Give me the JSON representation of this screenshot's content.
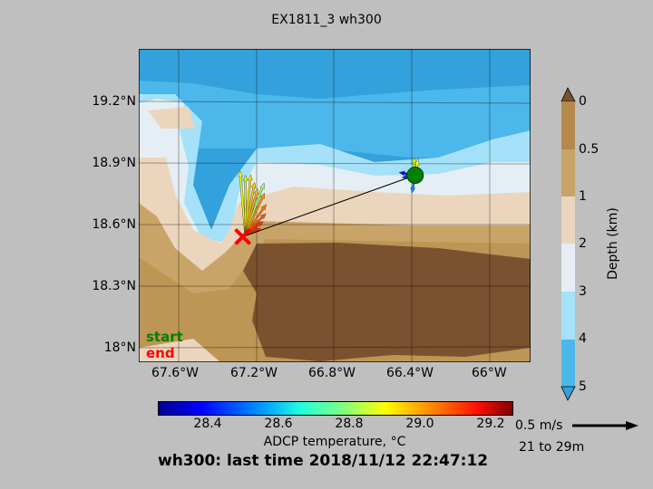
{
  "title": "EX1811_3 wh300",
  "map": {
    "lat_ticks": [
      "19.2°N",
      "18.9°N",
      "18.6°N",
      "18.3°N",
      "18°N"
    ],
    "lon_ticks": [
      "67.6°W",
      "67.2°W",
      "66.8°W",
      "66.4°W",
      "66°W"
    ],
    "lon_range": [
      -67.82,
      -65.8
    ],
    "lat_range": [
      17.93,
      19.46
    ],
    "start_label": "start",
    "end_label": "end",
    "start_point": {
      "lon": -66.395,
      "lat": 18.843,
      "color": "#008000"
    },
    "end_point": {
      "lon": -67.284,
      "lat": 18.543,
      "color": "#ff0000"
    }
  },
  "depth_colorbar": {
    "label": "Depth (km)",
    "ticks": [
      "0",
      "0.5",
      "1",
      "2",
      "3",
      "4",
      "5"
    ],
    "colors": [
      "#b5894b",
      "#c9a468",
      "#ebd6bd",
      "#e4eef4",
      "#a5e1f8",
      "#4cb7ea"
    ]
  },
  "temp_colorbar": {
    "label": "ADCP temperature, °C",
    "ticks": [
      "28.4",
      "28.6",
      "28.8",
      "29.0",
      "29.2"
    ],
    "range": [
      28.26,
      29.26
    ]
  },
  "scale": {
    "label": "0.5 m/s",
    "depth_range": "21 to 29m"
  },
  "footer": "wh300: last time 2018/11/12 22:47:12"
}
